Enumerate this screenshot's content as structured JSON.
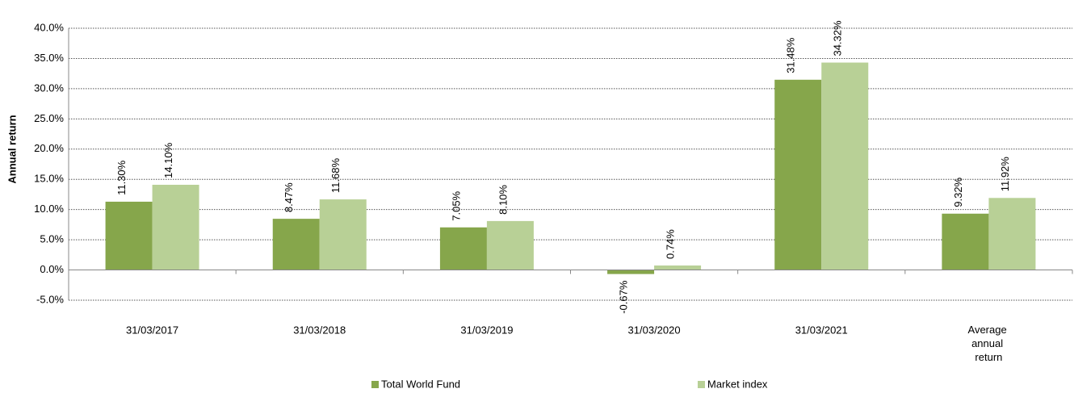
{
  "chart_data": {
    "type": "bar",
    "y_label": "Annual return",
    "categories": [
      "31/03/2017",
      "31/03/2018",
      "31/03/2019",
      "31/03/2020",
      "31/03/2021",
      "Average annual return"
    ],
    "series": [
      {
        "name": "Total World Fund",
        "color": "#86a64b",
        "values": [
          11.3,
          8.47,
          7.05,
          -0.67,
          31.48,
          9.32
        ],
        "value_labels": [
          "11.30%",
          "8.47%",
          "7.05%",
          "-0.67%",
          "31.48%",
          "9.32%"
        ]
      },
      {
        "name": "Market index",
        "color": "#b8d096",
        "values": [
          14.1,
          11.68,
          8.1,
          0.74,
          34.32,
          11.92
        ],
        "value_labels": [
          "14.10%",
          "11.68%",
          "8.10%",
          "0.74%",
          "34.32%",
          "11.92%"
        ]
      }
    ],
    "ylim": [
      -5,
      40
    ],
    "yticks": [
      {
        "value": -5,
        "label": "-5.0%"
      },
      {
        "value": 0,
        "label": "0.0%"
      },
      {
        "value": 5,
        "label": "5.0%"
      },
      {
        "value": 10,
        "label": "10.0%"
      },
      {
        "value": 15,
        "label": "15.0%"
      },
      {
        "value": 20,
        "label": "20.0%"
      },
      {
        "value": 25,
        "label": "25.0%"
      },
      {
        "value": 30,
        "label": "30.0%"
      },
      {
        "value": 35,
        "label": "35.0%"
      },
      {
        "value": 40,
        "label": "40.0%"
      }
    ],
    "grid": true
  }
}
